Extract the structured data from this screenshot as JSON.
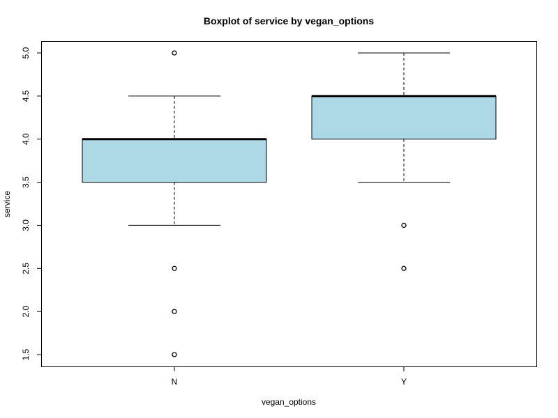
{
  "chart_data": {
    "type": "boxplot",
    "title": "Boxplot of service by vegan_options",
    "xlabel": "vegan_options",
    "ylabel": "service",
    "categories": [
      "N",
      "Y"
    ],
    "ylim": [
      1.35,
      5.1
    ],
    "yticks": [
      1.5,
      2.0,
      2.5,
      3.0,
      3.5,
      4.0,
      4.5,
      5.0
    ],
    "ytick_labels": [
      "1.5",
      "2.0",
      "2.5",
      "3.0",
      "3.5",
      "4.0",
      "4.5",
      "5.0"
    ],
    "box_color": "#add8e6",
    "series": [
      {
        "category": "N",
        "whisker_low": 3.0,
        "q1": 3.5,
        "median": 4.0,
        "q3": 4.0,
        "whisker_high": 4.5,
        "outliers": [
          5.0,
          2.5,
          2.0,
          1.5
        ]
      },
      {
        "category": "Y",
        "whisker_low": 3.5,
        "q1": 4.0,
        "median": 4.5,
        "q3": 4.5,
        "whisker_high": 5.0,
        "outliers": [
          3.0,
          2.5
        ]
      }
    ]
  }
}
